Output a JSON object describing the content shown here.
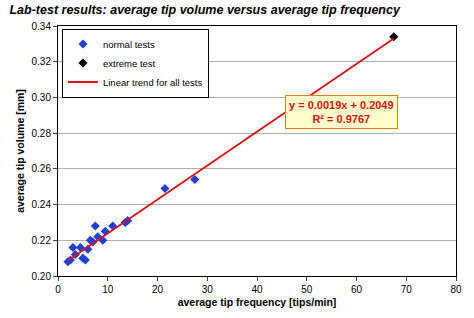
{
  "chart_data": {
    "type": "scatter",
    "title": "Lab-test results: average tip volume versus average tip frequency",
    "x_label": "average tip frequency [tips/min]",
    "y_label": "average tip volume [mm]",
    "xlim": [
      0,
      80
    ],
    "xticks": [
      0,
      10,
      20,
      30,
      40,
      50,
      60,
      70,
      80
    ],
    "ylim": [
      0.2,
      0.34
    ],
    "yticks": [
      {
        "value": 0.2,
        "label": "0.20"
      },
      0.22,
      0.24,
      0.26,
      0.28,
      {
        "value": 0.3,
        "label": "0.30"
      },
      0.32,
      0.34
    ],
    "grid": "y",
    "legend": "upper left",
    "annotations": [
      "y = 0.0019x + 0.2049",
      "R² = 0.9767"
    ],
    "series": [
      {
        "name": "normal tests",
        "type": "scatter",
        "color": "#1f3fd6",
        "marker": "diamond",
        "x": [
          2,
          2.5,
          3,
          3.5,
          4.5,
          5,
          5.5,
          6,
          6.5,
          7,
          7.5,
          8,
          9,
          9.5,
          11,
          13.5,
          14,
          21.5,
          27.5
        ],
        "values": [
          0.208,
          0.209,
          0.216,
          0.212,
          0.216,
          0.21,
          0.209,
          0.215,
          0.22,
          0.219,
          0.228,
          0.222,
          0.22,
          0.225,
          0.228,
          0.23,
          0.231,
          0.249,
          0.254
        ]
      },
      {
        "name": "extreme test",
        "type": "scatter",
        "color": "#000000",
        "marker": "diamond",
        "x": [
          67.5
        ],
        "values": [
          0.334
        ]
      },
      {
        "name": "Linear trend for all tests",
        "type": "line",
        "color": "#e01010",
        "line_style": "solid",
        "x": [
          2,
          67.5
        ],
        "values": [
          0.2087,
          0.333
        ]
      }
    ]
  }
}
